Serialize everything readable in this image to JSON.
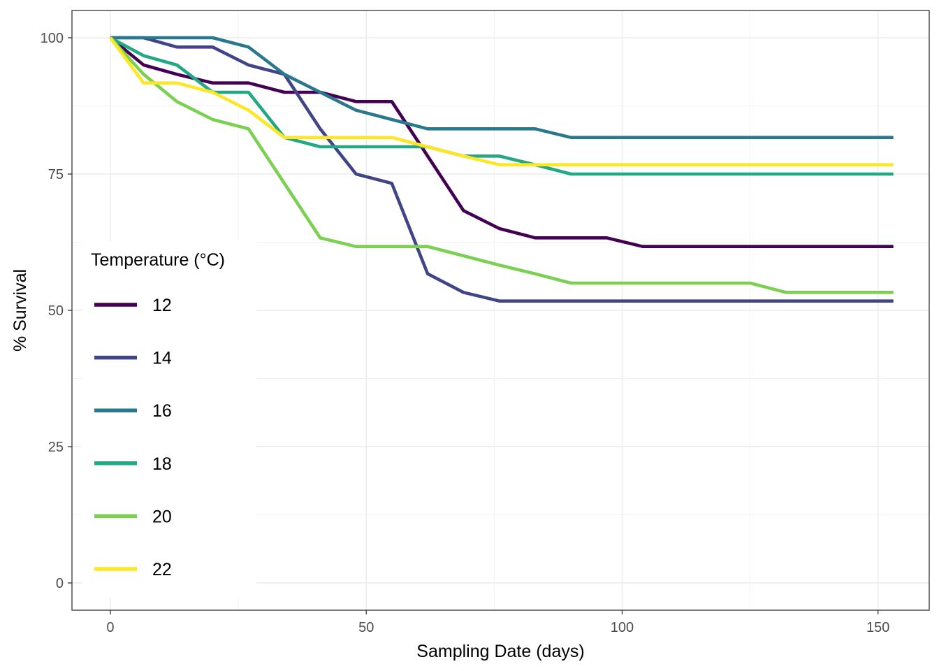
{
  "chart_data": {
    "type": "line",
    "xlabel": "Sampling Date (days)",
    "ylabel": "% Survival",
    "xlim": [
      -7.5,
      160.0
    ],
    "ylim": [
      -5,
      105
    ],
    "x_ticks": [
      0,
      50,
      100,
      150
    ],
    "y_ticks": [
      0,
      25,
      50,
      75,
      100
    ],
    "x_tick_labels": [
      "0",
      "50",
      "100",
      "150"
    ],
    "y_tick_labels": [
      "0",
      "25",
      "50",
      "75",
      "100"
    ],
    "grid": true,
    "legend": {
      "title": "Temperature (°C)",
      "placement": "left"
    },
    "series": [
      {
        "name": "12",
        "color": "#440154",
        "x": [
          0,
          6.5,
          13,
          20,
          27,
          34,
          41,
          48,
          55,
          62,
          69,
          76,
          83,
          90,
          97,
          104,
          111,
          118,
          125,
          132,
          139,
          146,
          153
        ],
        "y": [
          100,
          95,
          93.3,
          91.7,
          91.7,
          90,
          90,
          88.3,
          88.3,
          78.3,
          68.3,
          65,
          63.3,
          63.3,
          63.3,
          61.7,
          61.7,
          61.7,
          61.7,
          61.7,
          61.7,
          61.7,
          61.7
        ]
      },
      {
        "name": "14",
        "color": "#414487",
        "x": [
          0,
          6.5,
          13,
          20,
          27,
          34,
          41,
          48,
          55,
          62,
          69,
          76,
          83,
          90,
          97,
          104,
          111,
          118,
          125,
          132,
          139,
          146,
          153
        ],
        "y": [
          100,
          100,
          98.3,
          98.3,
          95,
          93.3,
          83.3,
          75,
          73.3,
          56.7,
          53.3,
          51.7,
          51.7,
          51.7,
          51.7,
          51.7,
          51.7,
          51.7,
          51.7,
          51.7,
          51.7,
          51.7,
          51.7
        ]
      },
      {
        "name": "16",
        "color": "#2a788e",
        "x": [
          0,
          6.5,
          13,
          20,
          27,
          34,
          41,
          48,
          55,
          62,
          69,
          76,
          83,
          90,
          97,
          104,
          111,
          118,
          125,
          132,
          139,
          146,
          153
        ],
        "y": [
          100,
          100,
          100,
          100,
          98.3,
          93.3,
          90,
          86.7,
          85,
          83.3,
          83.3,
          83.3,
          83.3,
          81.7,
          81.7,
          81.7,
          81.7,
          81.7,
          81.7,
          81.7,
          81.7,
          81.7,
          81.7
        ]
      },
      {
        "name": "18",
        "color": "#22a884",
        "x": [
          0,
          6.5,
          13,
          20,
          27,
          34,
          41,
          48,
          55,
          62,
          69,
          76,
          83,
          90,
          97,
          104,
          111,
          118,
          125,
          132,
          139,
          146,
          153
        ],
        "y": [
          100,
          96.7,
          95,
          90,
          90,
          81.7,
          80,
          80,
          80,
          80,
          78.3,
          78.3,
          76.7,
          75,
          75,
          75,
          75,
          75,
          75,
          75,
          75,
          75,
          75
        ]
      },
      {
        "name": "20",
        "color": "#7ad151",
        "x": [
          0,
          6.5,
          13,
          20,
          27,
          34,
          41,
          48,
          55,
          62,
          69,
          76,
          83,
          90,
          97,
          104,
          111,
          118,
          125,
          132,
          139,
          146,
          153
        ],
        "y": [
          100,
          93.3,
          88.3,
          85,
          83.3,
          73.3,
          63.3,
          61.7,
          61.7,
          61.7,
          60,
          58.3,
          56.7,
          55,
          55,
          55,
          55,
          55,
          55,
          53.3,
          53.3,
          53.3,
          53.3
        ]
      },
      {
        "name": "22",
        "color": "#fde725",
        "x": [
          0,
          6.5,
          13,
          20,
          27,
          34,
          41,
          48,
          55,
          62,
          69,
          76,
          83,
          90,
          97,
          104,
          111,
          118,
          125,
          132,
          139,
          146,
          153
        ],
        "y": [
          100,
          91.7,
          91.7,
          90,
          86.7,
          81.7,
          81.7,
          81.7,
          81.7,
          80,
          78.3,
          76.7,
          76.7,
          76.7,
          76.7,
          76.7,
          76.7,
          76.7,
          76.7,
          76.7,
          76.7,
          76.7,
          76.7
        ]
      }
    ]
  }
}
